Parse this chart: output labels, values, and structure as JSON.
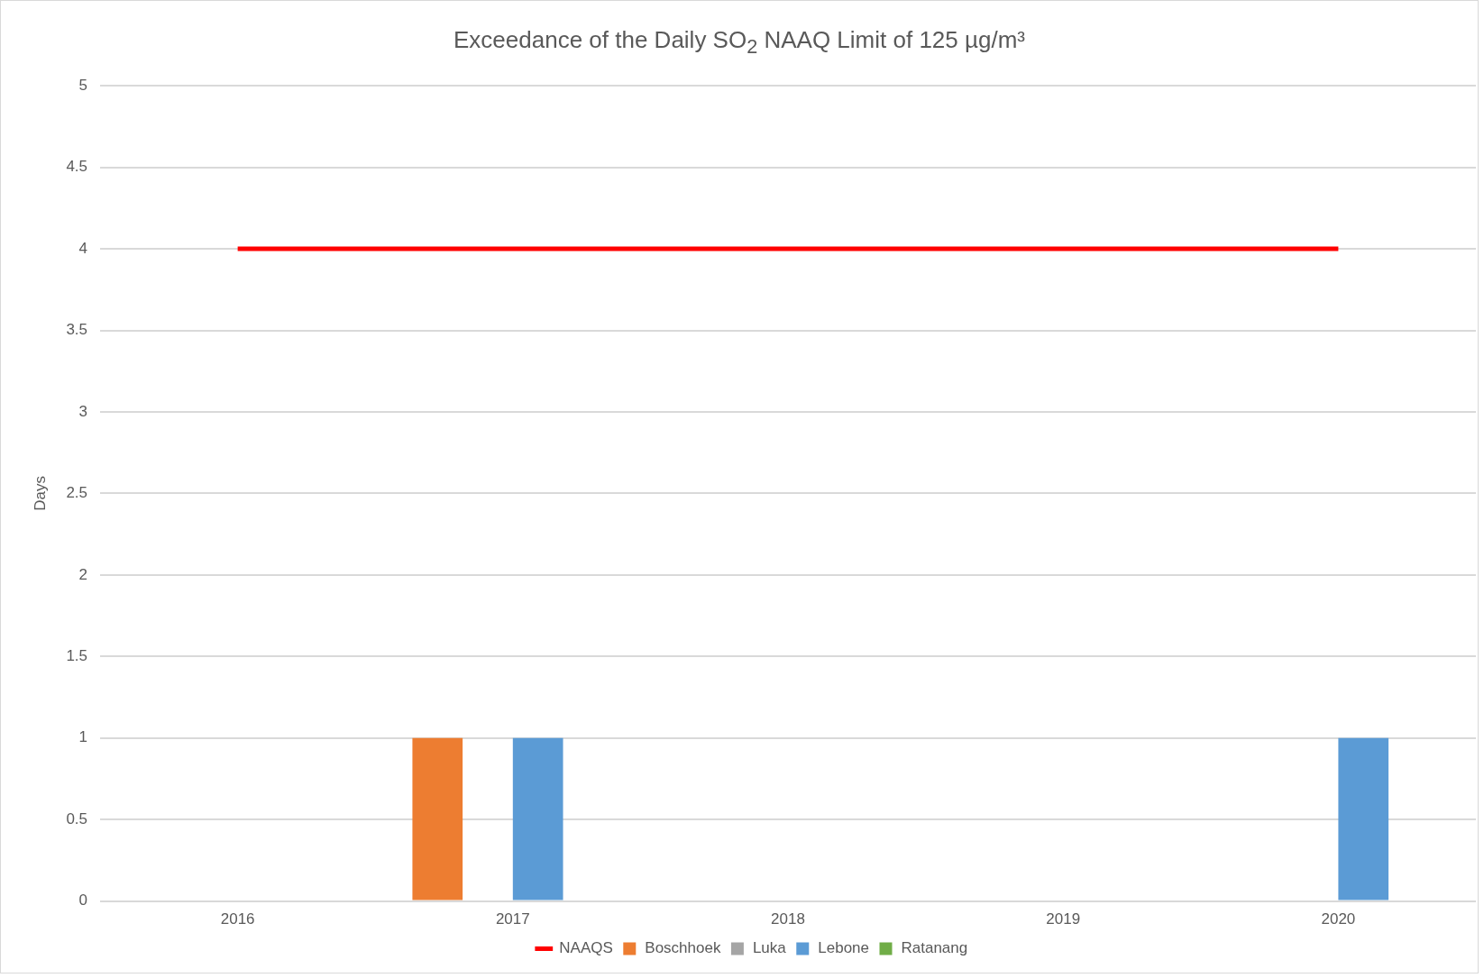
{
  "chart_data": {
    "type": "bar",
    "title": "Exceedance of the Daily SO$_{2}$ NAAQ Limit of 125 µg/m³",
    "ylabel": "Days",
    "categories": [
      "2016",
      "2017",
      "2018",
      "2019",
      "2020"
    ],
    "series": [
      {
        "name": "Boschhoek",
        "color": "#ed7d31",
        "values": [
          0,
          1,
          0,
          0,
          0
        ]
      },
      {
        "name": "Luka",
        "color": "#a5a5a5",
        "values": [
          0,
          0,
          0,
          0,
          0
        ]
      },
      {
        "name": "Lebone",
        "color": "#5b9bd5",
        "values": [
          0,
          1,
          0,
          0,
          1
        ]
      },
      {
        "name": "Ratanang",
        "color": "#70ad47",
        "values": [
          0,
          0,
          0,
          0,
          0
        ]
      },
      {
        "name": "NAAQS",
        "type": "line",
        "color": "#ff0000",
        "values": [
          4,
          4,
          4,
          4,
          4
        ]
      }
    ],
    "ylim": [
      0,
      5
    ],
    "yticks": [
      0,
      0.5,
      1,
      1.5,
      2,
      2.5,
      3,
      3.5,
      4,
      4.5,
      5
    ],
    "grid": "y",
    "legend": "bottom"
  }
}
